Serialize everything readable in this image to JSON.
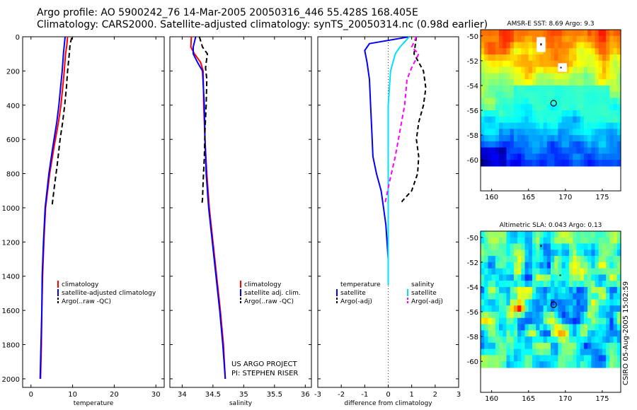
{
  "header": {
    "line1": "Argo profile: AO 5900242_76 14-Mar-2005 20050316_446 55.428S 168.405E",
    "line2": "Climatology: CARS2000. Satellite-adjusted climatology: synTS_20050314.nc (0.98d earlier)"
  },
  "credit": "CSIRO 05-Aug-2005 15:02:59",
  "colors": {
    "climatology": "#ff0000",
    "satellite": "#0000ff",
    "argo": "#000000",
    "sat_salinity": "#00e0ff",
    "argo_salinity": "#ff00ff"
  },
  "chart_data": [
    {
      "type": "line",
      "title": "",
      "xlabel": "temperature",
      "xlim": [
        -2,
        32
      ],
      "xticks": [
        0,
        10,
        20,
        30
      ],
      "xticklabels": [
        "0",
        "10",
        "20",
        "30"
      ],
      "ylim": [
        0,
        2050
      ],
      "yticks": [
        0,
        200,
        400,
        600,
        800,
        1000,
        1200,
        1400,
        1600,
        1800,
        2000
      ],
      "yticklabels": [
        "0",
        "200",
        "400",
        "600",
        "800",
        "1000",
        "1200",
        "1400",
        "1600",
        "1800",
        "2000"
      ],
      "legend": [
        "climatology",
        "satellite-adjusted climatology",
        "Argo(..raw -QC)"
      ],
      "series": [
        {
          "name": "climatology",
          "color": "#ff0000",
          "dash": "",
          "x": [
            8.8,
            8.6,
            8.3,
            8.0,
            7.6,
            7.2,
            6.6,
            5.5,
            4.5,
            3.5,
            3.1,
            2.8,
            2.6,
            2.5,
            2.4,
            2.3
          ],
          "y": [
            0,
            50,
            100,
            200,
            300,
            400,
            500,
            650,
            800,
            1000,
            1200,
            1400,
            1600,
            1800,
            1900,
            2000
          ]
        },
        {
          "name": "satellite-adjusted climatology",
          "color": "#0000ff",
          "dash": "",
          "x": [
            8.2,
            8.0,
            7.8,
            7.5,
            7.1,
            6.7,
            6.2,
            5.2,
            4.3,
            3.4,
            3.0,
            2.7,
            2.6,
            2.4,
            2.3,
            2.2
          ],
          "y": [
            0,
            50,
            100,
            200,
            300,
            400,
            500,
            650,
            800,
            1000,
            1200,
            1400,
            1600,
            1800,
            1900,
            2000
          ]
        },
        {
          "name": "Argo(..raw -QC)",
          "color": "#000000",
          "dash": "7,4",
          "x": [
            9.8,
            9.4,
            9.2,
            8.8,
            8.5,
            8.1,
            7.6,
            7.0,
            6.3,
            5.6,
            5.2,
            5.1
          ],
          "y": [
            5,
            40,
            100,
            200,
            300,
            400,
            500,
            600,
            750,
            880,
            960,
            980
          ]
        }
      ]
    },
    {
      "type": "line",
      "title": "",
      "xlabel": "salinity",
      "xlim": [
        33.8,
        36.1
      ],
      "xticks": [
        34,
        34.5,
        35,
        35.5,
        36
      ],
      "xticklabels": [
        "34",
        "34.5",
        "35",
        "35.5",
        "36"
      ],
      "ylim": [
        0,
        2050
      ],
      "legend": [
        "climatology",
        "satellite adj. clim.",
        "Argo(..raw -QC)"
      ],
      "annotation": [
        "US ARGO PROJECT",
        "PI: STEPHEN RISER"
      ],
      "series": [
        {
          "name": "climatology",
          "color": "#ff0000",
          "dash": "",
          "x": [
            34.15,
            34.14,
            34.2,
            34.3,
            34.34,
            34.35,
            34.37,
            34.4,
            34.44,
            34.5,
            34.56,
            34.62,
            34.67,
            34.7
          ],
          "y": [
            0,
            60,
            100,
            150,
            200,
            400,
            600,
            800,
            1000,
            1200,
            1400,
            1600,
            1800,
            2000
          ]
        },
        {
          "name": "satellite adj. clim.",
          "color": "#0000ff",
          "dash": "",
          "x": [
            34.22,
            34.18,
            34.18,
            34.25,
            34.33,
            34.36,
            34.37,
            34.39,
            34.43,
            34.49,
            34.55,
            34.61,
            34.66,
            34.7
          ],
          "y": [
            0,
            60,
            100,
            150,
            200,
            400,
            600,
            800,
            1000,
            1200,
            1400,
            1600,
            1800,
            2000
          ]
        },
        {
          "name": "Argo(..raw -QC)",
          "color": "#000000",
          "dash": "7,4",
          "x": [
            34.28,
            34.33,
            34.41,
            34.38,
            34.4,
            34.39,
            34.37,
            34.36,
            34.34,
            34.33,
            34.32
          ],
          "y": [
            0,
            60,
            100,
            180,
            250,
            400,
            550,
            700,
            850,
            950,
            980
          ]
        }
      ]
    },
    {
      "type": "line",
      "title": "",
      "xlabel": "difference from climatology",
      "xlim": [
        -3,
        3
      ],
      "xticks": [
        -3,
        -2,
        -1,
        0,
        1,
        2,
        3
      ],
      "xticklabels": [
        "-3",
        "-2",
        "-1",
        "0",
        "1",
        "2",
        "3"
      ],
      "ylim": [
        0,
        2050
      ],
      "legend_temperature": [
        "temperature",
        "satellite",
        "Argo(-adj)"
      ],
      "legend_salinity": [
        "salinity",
        "satellite",
        "Argo(-adj)"
      ],
      "series": [
        {
          "name": "temperature satellite",
          "color": "#0000ff",
          "dash": "",
          "x": [
            0.9,
            -0.8,
            -1.0,
            -0.9,
            -0.8,
            -0.75,
            -0.7,
            -0.65,
            -0.5,
            -0.3,
            -0.2,
            -0.1,
            -0.05,
            0.0,
            0.0
          ],
          "y": [
            0,
            40,
            80,
            150,
            250,
            400,
            550,
            700,
            800,
            900,
            1000,
            1100,
            1200,
            1300,
            1450
          ]
        },
        {
          "name": "temperature Argo(-adj)",
          "color": "#000000",
          "dash": "6,4",
          "x": [
            1.2,
            1.1,
            1.5,
            1.6,
            1.5,
            1.3,
            1.2,
            1.3,
            1.25,
            1.0,
            0.6,
            0.55
          ],
          "y": [
            0,
            100,
            200,
            300,
            400,
            500,
            600,
            700,
            800,
            900,
            960,
            980
          ]
        },
        {
          "name": "salinity satellite",
          "color": "#00e0ff",
          "dash": "",
          "x": [
            0.9,
            0.7,
            0.5,
            0.3,
            0.1,
            0.0,
            0.0,
            0.0,
            0.0,
            0.0,
            0.0
          ],
          "y": [
            0,
            30,
            60,
            100,
            200,
            400,
            600,
            800,
            1000,
            1200,
            1450
          ]
        },
        {
          "name": "salinity Argo(-adj)",
          "color": "#ff00ff",
          "dash": "6,4",
          "x": [
            1.2,
            1.0,
            1.3,
            1.0,
            0.8,
            0.7,
            0.5,
            0.3,
            0.05,
            -0.1,
            -0.15
          ],
          "y": [
            0,
            60,
            100,
            180,
            250,
            400,
            550,
            700,
            850,
            950,
            980
          ]
        }
      ]
    },
    {
      "type": "heatmap",
      "title": "AMSR-E SST: 8.69 Argo: 9.3",
      "xlim": [
        158.5,
        177.5
      ],
      "xticks": [
        160,
        165,
        170,
        175
      ],
      "xticklabels": [
        "160",
        "165",
        "170",
        "175"
      ],
      "ylim": [
        -62.5,
        -49.5
      ],
      "yticks": [
        -50,
        -52,
        -54,
        -56,
        -58,
        -60
      ],
      "yticklabels": [
        "-50",
        "-52",
        "-54",
        "-56",
        "-58",
        "-60"
      ],
      "data_lat_range": [
        -60,
        -49.5
      ],
      "profile_location": [
        168.4,
        -55.43
      ]
    },
    {
      "type": "heatmap",
      "title": "Altimetric SLA: 0.043 Argo: 0.13",
      "xlim": [
        158.5,
        177.5
      ],
      "xticks": [
        160,
        165,
        170,
        175
      ],
      "xticklabels": [
        "160",
        "165",
        "170",
        "175"
      ],
      "ylim": [
        -62.5,
        -49.5
      ],
      "yticks": [
        -50,
        -52,
        -54,
        -56,
        -58,
        -60
      ],
      "yticklabels": [
        "-50",
        "-52",
        "-54",
        "-56",
        "-58",
        "-60"
      ],
      "data_lat_range": [
        -60,
        -49.5
      ],
      "profile_location": [
        168.4,
        -55.43
      ]
    }
  ]
}
